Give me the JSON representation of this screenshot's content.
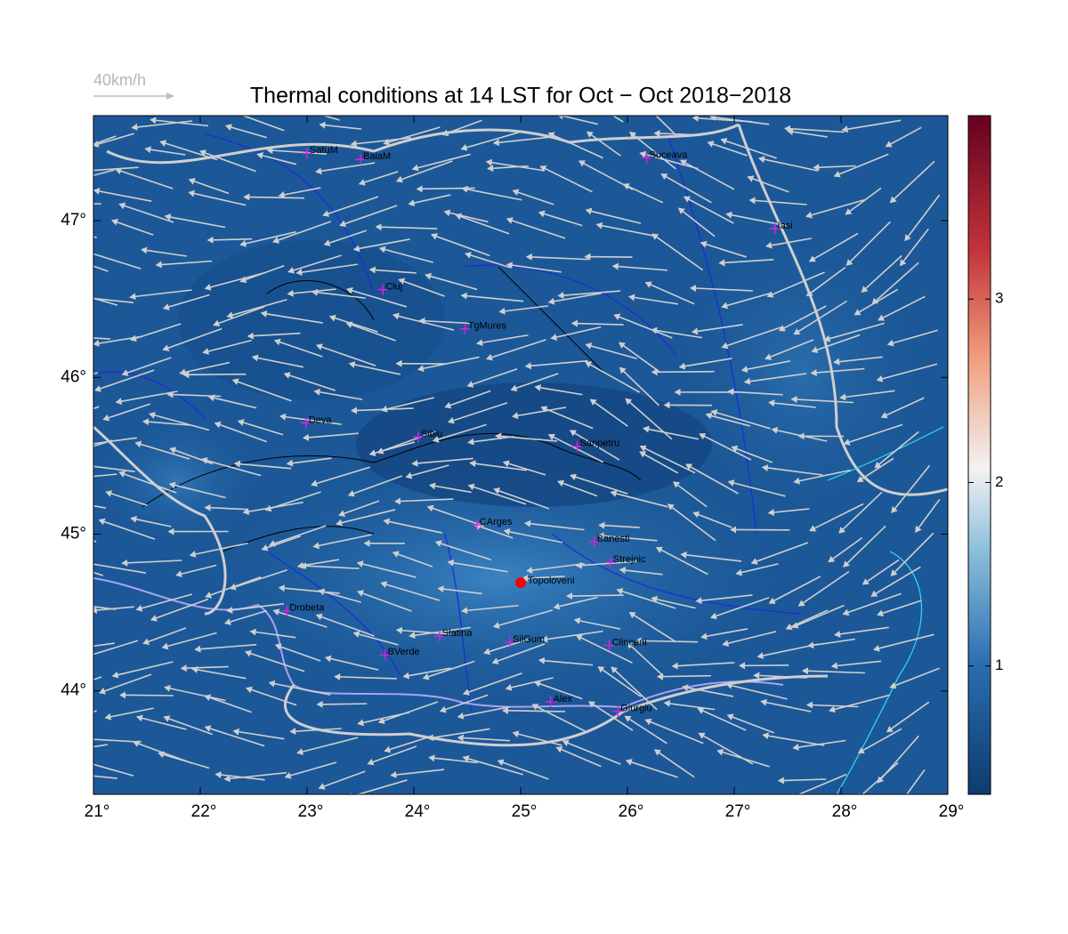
{
  "chart_data": {
    "type": "map",
    "title": "Thermal conditions at 14 LST for Oct − Oct  2018−2018",
    "reference_arrow": "40km/h",
    "xlim": [
      21,
      29
    ],
    "ylim": [
      43.34,
      47.67
    ],
    "xticks": [
      {
        "value": 21,
        "label": "21°"
      },
      {
        "value": 22,
        "label": "22°"
      },
      {
        "value": 23,
        "label": "23°"
      },
      {
        "value": 24,
        "label": "24°"
      },
      {
        "value": 25,
        "label": "25°"
      },
      {
        "value": 26,
        "label": "26°"
      },
      {
        "value": 27,
        "label": "27°"
      },
      {
        "value": 28,
        "label": "28°"
      },
      {
        "value": 29,
        "label": "29°"
      }
    ],
    "yticks": [
      {
        "value": 44,
        "label": "44°"
      },
      {
        "value": 45,
        "label": "45°"
      },
      {
        "value": 46,
        "label": "46°"
      },
      {
        "value": 47,
        "label": "47°"
      }
    ],
    "colorbar": {
      "clim": [
        0.3,
        4.0
      ],
      "ticks": [
        1,
        2,
        3
      ]
    },
    "cities": [
      {
        "label": "SatuM",
        "lon": 23.0,
        "lat": 47.43
      },
      {
        "label": "BaiaM",
        "lon": 23.5,
        "lat": 47.39
      },
      {
        "label": "Suceava",
        "lon": 26.18,
        "lat": 47.4
      },
      {
        "label": "Iasi",
        "lon": 27.38,
        "lat": 46.95
      },
      {
        "label": "Cluj",
        "lon": 23.71,
        "lat": 46.56
      },
      {
        "label": "TgMures",
        "lon": 24.48,
        "lat": 46.31
      },
      {
        "label": "Deva",
        "lon": 22.99,
        "lat": 45.71
      },
      {
        "label": "Sibiu",
        "lon": 24.04,
        "lat": 45.62
      },
      {
        "label": "Sanpetru",
        "lon": 25.53,
        "lat": 45.56
      },
      {
        "label": "CArges",
        "lon": 24.59,
        "lat": 45.06
      },
      {
        "label": "Banesti",
        "lon": 25.69,
        "lat": 44.95
      },
      {
        "label": "Strejnic",
        "lon": 25.84,
        "lat": 44.82
      },
      {
        "label": "Drobeta",
        "lon": 22.81,
        "lat": 44.51
      },
      {
        "label": "Slatina",
        "lon": 24.24,
        "lat": 44.35
      },
      {
        "label": "SilGum",
        "lon": 24.9,
        "lat": 44.31
      },
      {
        "label": "Clinceni",
        "lon": 25.83,
        "lat": 44.29
      },
      {
        "label": "BVerde",
        "lon": 23.73,
        "lat": 44.23
      },
      {
        "label": "Alex",
        "lon": 25.28,
        "lat": 43.93
      },
      {
        "label": "Giurgiu",
        "lon": 25.91,
        "lat": 43.87
      }
    ],
    "site": {
      "label": "Topoloveni",
      "lon": 25.0,
      "lat": 44.69
    }
  }
}
